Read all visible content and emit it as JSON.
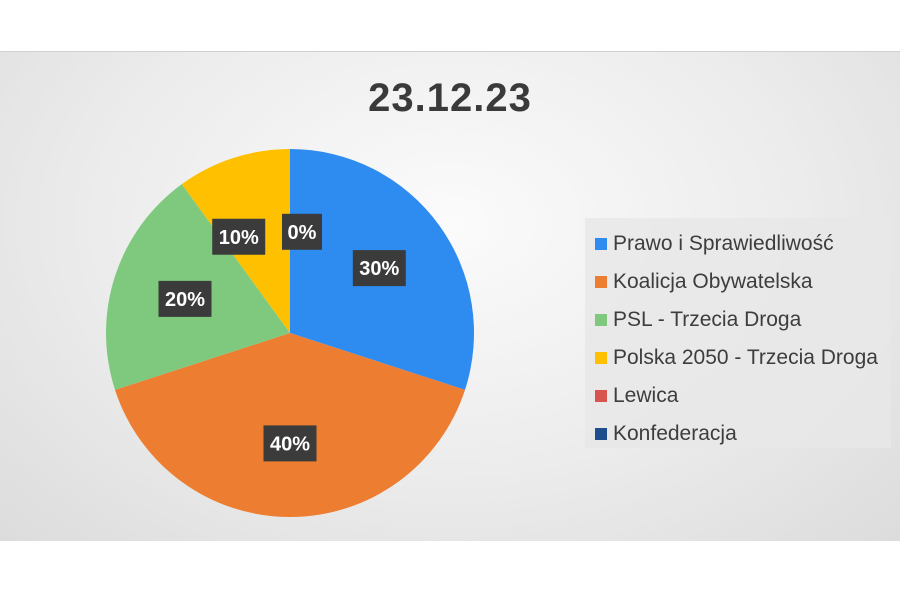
{
  "chart_data": {
    "type": "pie",
    "title": "23.12.23",
    "categories": [
      "Prawo i Sprawiedliwość",
      "Koalicja Obywatelska",
      "PSL - Trzecia Droga",
      "Polska 2050 - Trzecia Droga",
      "Lewica",
      "Konfederacja"
    ],
    "values": [
      30,
      40,
      20,
      10,
      0,
      0
    ],
    "data_labels": [
      "30%",
      "40%",
      "20%",
      "10%",
      "0%",
      "0%"
    ],
    "colors": [
      "#2E8BF0",
      "#ED7D31",
      "#7FC97F",
      "#FFC000",
      "#D9534F",
      "#1F4E8C"
    ],
    "legend_position": "right"
  }
}
